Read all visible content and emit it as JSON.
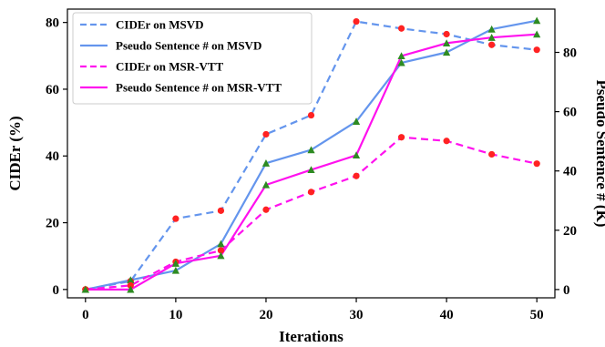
{
  "chart_data": {
    "type": "line",
    "xlabel": "Iterations",
    "ylabel_left": "CIDEr (%)",
    "ylabel_right": "Pseudo Sentence # (K)",
    "x": [
      0,
      5,
      10,
      15,
      20,
      25,
      30,
      35,
      40,
      45,
      50
    ],
    "xticks": [
      "0",
      "10",
      "20",
      "30",
      "40",
      "50"
    ],
    "xlim": [
      -2,
      52
    ],
    "ylim_left": [
      -2.5,
      84
    ],
    "ylim_right": [
      -2.8,
      94.6
    ],
    "yticks_left": [
      "0",
      "20",
      "40",
      "60",
      "80"
    ],
    "yticks_right": [
      "0",
      "20",
      "40",
      "60",
      "80"
    ],
    "legend_position": "top-left",
    "grid": false,
    "series": [
      {
        "name": "CIDEr on MSVD",
        "axis": "left",
        "color": "#6495ED",
        "style": "dashed",
        "marker": "circle",
        "marker_color": "#FF2222",
        "values": [
          0.0,
          2.5,
          21.2,
          23.6,
          46.5,
          52.2,
          80.3,
          78.2,
          76.5,
          73.3,
          71.8
        ]
      },
      {
        "name": "Pseudo Sentence # on MSVD",
        "axis": "right",
        "color": "#6495ED",
        "style": "solid",
        "marker": "triangle",
        "marker_color": "#2E8B22",
        "values": [
          0.0,
          3.2,
          6.4,
          15.4,
          42.6,
          47.1,
          56.7,
          76.5,
          80.0,
          87.8,
          90.7
        ]
      },
      {
        "name": "CIDEr on MSR-VTT",
        "axis": "left",
        "color": "#FF11EE",
        "style": "dashed",
        "marker": "circle",
        "marker_color": "#FF2222",
        "values": [
          0.0,
          1.2,
          8.3,
          11.7,
          23.9,
          29.2,
          34.0,
          45.6,
          44.5,
          40.5,
          37.7
        ]
      },
      {
        "name": "Pseudo Sentence # on MSR-VTT",
        "axis": "right",
        "color": "#FF11EE",
        "style": "solid",
        "marker": "triangle",
        "marker_color": "#2E8B22",
        "values": [
          0.0,
          0.0,
          8.8,
          11.4,
          35.3,
          40.4,
          45.3,
          78.8,
          83.1,
          85.0,
          86.1
        ]
      }
    ]
  }
}
